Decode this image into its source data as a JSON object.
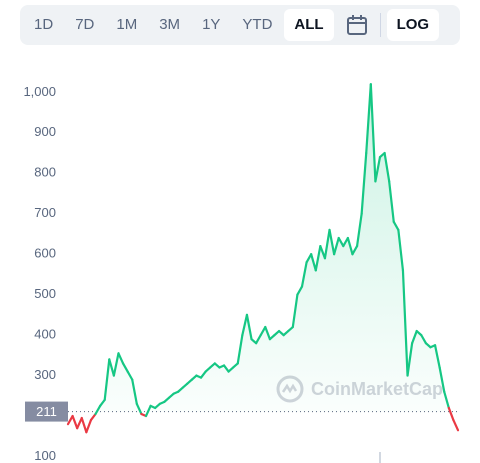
{
  "toolbar": {
    "ranges": [
      "1D",
      "7D",
      "1M",
      "3M",
      "1Y",
      "YTD",
      "ALL"
    ],
    "selected": 6,
    "log": "LOG"
  },
  "chart_data": {
    "type": "line",
    "values": [
      180,
      200,
      170,
      195,
      160,
      190,
      205,
      225,
      240,
      340,
      300,
      355,
      330,
      310,
      290,
      230,
      205,
      200,
      225,
      220,
      230,
      235,
      245,
      255,
      260,
      270,
      280,
      290,
      300,
      295,
      310,
      320,
      330,
      320,
      325,
      310,
      320,
      330,
      400,
      450,
      390,
      380,
      400,
      420,
      390,
      400,
      410,
      400,
      410,
      420,
      500,
      520,
      580,
      600,
      560,
      620,
      590,
      660,
      600,
      640,
      620,
      640,
      600,
      620,
      700,
      850,
      1020,
      780,
      840,
      850,
      780,
      680,
      660,
      560,
      300,
      380,
      410,
      400,
      380,
      370,
      375,
      320,
      260,
      220,
      190,
      165
    ],
    "current_value": 211,
    "up_color": "#16c784",
    "down_color": "#ea3943",
    "ylim": [
      100,
      1075
    ],
    "yticks": [
      100,
      300,
      400,
      500,
      600,
      700,
      800,
      900,
      {
        "value": 1000,
        "label": "1,000"
      }
    ],
    "watermark": "CoinMarketCap"
  }
}
